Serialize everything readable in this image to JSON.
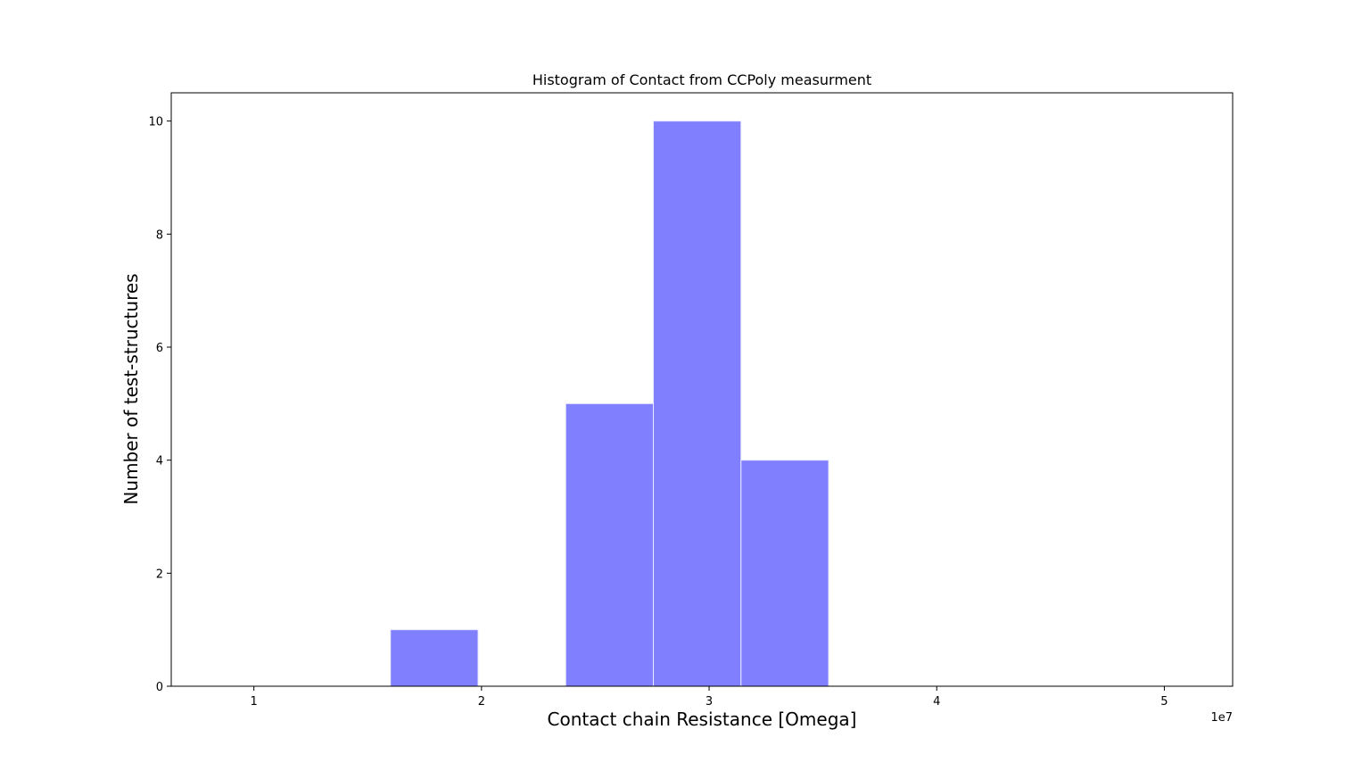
{
  "chart_data": {
    "type": "bar",
    "subtype": "histogram",
    "title": "Histogram of Contact from CCPoly measurment",
    "xlabel": "Contact chain Resistance [Omega]",
    "ylabel": "Number of test-structures",
    "x_offset_label": "1e7",
    "x_scale": 10000000,
    "xlim": [
      0.637,
      5.3
    ],
    "ylim": [
      0,
      10.5
    ],
    "x_ticks": [
      1,
      2,
      3,
      4,
      5
    ],
    "x_tick_labels": [
      "1",
      "2",
      "3",
      "4",
      "5"
    ],
    "y_ticks": [
      0,
      2,
      4,
      6,
      8,
      10
    ],
    "y_tick_labels": [
      "0",
      "2",
      "4",
      "6",
      "8",
      "10"
    ],
    "bin_edges": [
      0.83,
      1.215,
      1.6,
      1.985,
      2.37,
      2.755,
      3.14,
      3.525,
      3.91,
      4.295,
      4.68,
      5.065
    ],
    "counts": [
      0,
      0,
      1,
      0,
      5,
      10,
      4,
      0,
      0,
      0,
      0
    ],
    "bar_color": "#8080ff",
    "edge_color": "#e8e8ff",
    "grid": false
  }
}
